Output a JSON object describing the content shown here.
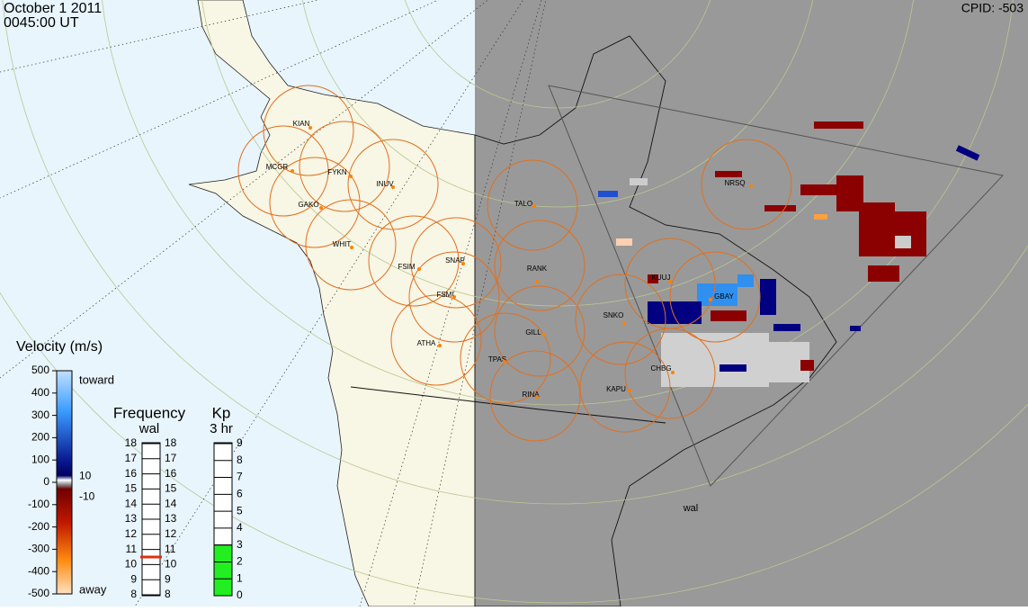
{
  "header": {
    "date": "October  1 2011",
    "time": "0045:00 UT",
    "cpid": "CPID:  -503"
  },
  "stations": [
    "KIAN",
    "MCGR",
    "FYKN",
    "GAKO",
    "INUV",
    "WHIT",
    "FSIM",
    "SNAP",
    "FSMI",
    "ATHA",
    "TALO",
    "RANK",
    "GILL",
    "TPAS",
    "RINA",
    "KAPU",
    "SNKO",
    "CHBG",
    "KUUJ",
    "GBAY",
    "NRSQ"
  ],
  "radar_label": "wal",
  "velocity_scale": {
    "title": "Velocity (m/s)",
    "toward": "toward",
    "away": "away",
    "lim": [
      -500,
      500
    ],
    "ticks": [
      500,
      400,
      300,
      200,
      100,
      0,
      -100,
      -200,
      -300,
      -400,
      -500
    ],
    "inner_ticks": [
      10,
      -10
    ]
  },
  "frequency_scale": {
    "title": "Frequency",
    "radar": "wal",
    "lim": [
      8,
      18
    ],
    "ticks": [
      8,
      9,
      10,
      11,
      12,
      13,
      14,
      15,
      16,
      17,
      18
    ],
    "value": 10.5
  },
  "kp_scale": {
    "title": "Kp",
    "subtitle": "3 hr",
    "lim": [
      0,
      9
    ],
    "ticks": [
      0,
      1,
      2,
      3,
      4,
      5,
      6,
      7,
      8,
      9
    ],
    "value": 3
  }
}
